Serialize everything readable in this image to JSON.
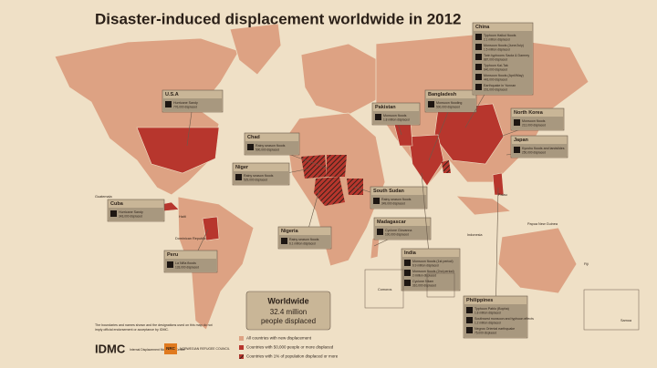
{
  "title": "Disaster-induced displacement worldwide in 2012",
  "callouts": [
    {
      "country": "U.S.A",
      "items": [
        {
          "event": "Hurricane Sandy",
          "displaced": "776,000 displaced"
        }
      ]
    },
    {
      "country": "Chad",
      "items": [
        {
          "event": "Rainy season floods",
          "displaced": "500,000 displaced"
        }
      ]
    },
    {
      "country": "Niger",
      "items": [
        {
          "event": "Rainy season floods",
          "displaced": "529,000 displaced"
        }
      ]
    },
    {
      "country": "Nigeria",
      "items": [
        {
          "event": "Rainy season floods",
          "displaced": "6.1 million displaced"
        }
      ]
    },
    {
      "country": "South Sudan",
      "items": [
        {
          "event": "Rainy season floods",
          "displaced": "349,000 displaced"
        }
      ]
    },
    {
      "country": "Madagascar",
      "items": [
        {
          "event": "Cyclone Giovanna",
          "displaced": "100,000 displaced"
        }
      ]
    },
    {
      "country": "Cuba",
      "items": [
        {
          "event": "Hurricane Sandy",
          "displaced": "343,000 displaced"
        }
      ]
    },
    {
      "country": "Peru",
      "items": [
        {
          "event": "La Niña floods",
          "displaced": "133,000 displaced"
        }
      ]
    },
    {
      "country": "Pakistan",
      "items": [
        {
          "event": "Monsoon floods",
          "displaced": "1.8 million displaced"
        }
      ]
    },
    {
      "country": "Bangladesh",
      "items": [
        {
          "event": "Monsoon flooding",
          "displaced": "500,000 displaced"
        }
      ]
    },
    {
      "country": "China",
      "items": [
        {
          "event": "Typhoon Haikui floods",
          "displaced": "2.1 million displaced"
        },
        {
          "event": "Monsoon floods (June/July)",
          "displaced": "1.5 million displaced"
        },
        {
          "event": "Twin typhoons Saola & Damrey",
          "displaced": "887,000 displaced"
        },
        {
          "event": "Typhoon Kai-Tak",
          "displaced": "640,000 displaced"
        },
        {
          "event": "Monsoon floods (April/May)",
          "displaced": "443,000 displaced"
        },
        {
          "event": "Earthquake in Yunnan",
          "displaced": "201,000 displaced"
        }
      ]
    },
    {
      "country": "North Korea",
      "items": [
        {
          "event": "Monsoon floods",
          "displaced": "212,000 displaced"
        }
      ]
    },
    {
      "country": "Japan",
      "items": [
        {
          "event": "Kyushu floods and landslides",
          "displaced": "250,000 displaced"
        }
      ]
    },
    {
      "country": "India",
      "items": [
        {
          "event": "Monsoon floods (1st period)",
          "displaced": "6.9 million displaced"
        },
        {
          "event": "Monsoon floods (2nd period)",
          "displaced": "2 million displaced"
        },
        {
          "event": "Cyclone Nilam",
          "displaced": "310,000 displaced"
        }
      ]
    },
    {
      "country": "Philippines",
      "items": [
        {
          "event": "Typhoon Pablo (Bopha)",
          "displaced": "1.8 million displaced"
        },
        {
          "event": "Southwest monsoon and typhoon effects",
          "displaced": "1.2 million displaced"
        },
        {
          "event": "Negros Oriental earthquake",
          "displaced": "75,000 displaced"
        }
      ]
    }
  ],
  "worldwide": {
    "heading": "Worldwide",
    "figure": "32.4 million",
    "note": "people displaced"
  },
  "map_labels": [
    "Guatemala",
    "Haiti",
    "Dominican Republic",
    "Indonesia",
    "Palau",
    "Papua New Guinea",
    "Samoa",
    "Comoros",
    "Fiji"
  ],
  "legend": [
    "All countries with new displacement",
    "Countries with 50,000 people or more displaced",
    "Countries with 1% of population displaced or more"
  ],
  "disclaimer": "The boundaries and names shown and the designations used on this map do not imply official endorsement or acceptance by IDMC.",
  "logos": {
    "idmc": "IDMC",
    "idmc_name": "Internal Displacement Monitoring Centre",
    "nrc": "NRC",
    "nrc_name": "NORWEGIAN REFUGEE COUNCIL"
  }
}
